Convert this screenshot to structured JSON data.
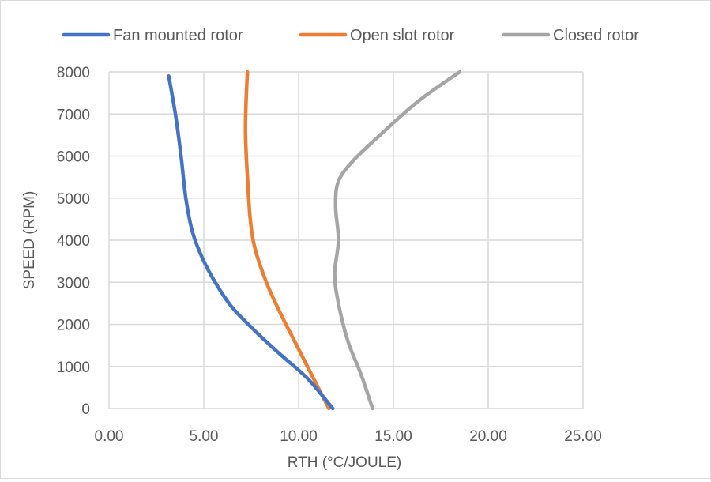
{
  "chart_data": {
    "type": "line",
    "title": "",
    "xlabel": "RTH (°C/JOULE)",
    "ylabel": "SPEED (RPM)",
    "xlim": [
      0,
      25
    ],
    "ylim": [
      0,
      8000
    ],
    "x_ticks": [
      "0.00",
      "5.00",
      "10.00",
      "15.00",
      "20.00",
      "25.00"
    ],
    "y_ticks": [
      "0",
      "1000",
      "2000",
      "3000",
      "4000",
      "5000",
      "6000",
      "7000",
      "8000"
    ],
    "grid": true,
    "legend_position": "top",
    "series": [
      {
        "name": "Fan mounted rotor",
        "color": "#4472C4",
        "points": [
          [
            11.8,
            0
          ],
          [
            10.5,
            700
          ],
          [
            9.0,
            1300
          ],
          [
            7.8,
            1800
          ],
          [
            6.5,
            2400
          ],
          [
            5.6,
            3000
          ],
          [
            4.9,
            3600
          ],
          [
            4.4,
            4200
          ],
          [
            4.05,
            5000
          ],
          [
            3.8,
            6000
          ],
          [
            3.5,
            7000
          ],
          [
            3.15,
            7900
          ]
        ]
      },
      {
        "name": "Open slot rotor",
        "color": "#ED7D31",
        "points": [
          [
            11.6,
            0
          ],
          [
            10.8,
            700
          ],
          [
            9.9,
            1500
          ],
          [
            9.0,
            2300
          ],
          [
            8.3,
            3000
          ],
          [
            7.7,
            3800
          ],
          [
            7.45,
            4500
          ],
          [
            7.3,
            5500
          ],
          [
            7.2,
            6500
          ],
          [
            7.22,
            7200
          ],
          [
            7.3,
            8000
          ]
        ]
      },
      {
        "name": "Closed rotor",
        "color": "#A5A5A5",
        "points": [
          [
            13.9,
            0
          ],
          [
            13.3,
            800
          ],
          [
            12.6,
            1600
          ],
          [
            12.1,
            2500
          ],
          [
            11.9,
            3200
          ],
          [
            12.1,
            4000
          ],
          [
            11.95,
            4800
          ],
          [
            12.1,
            5400
          ],
          [
            12.9,
            5900
          ],
          [
            14.3,
            6500
          ],
          [
            16.3,
            7300
          ],
          [
            18.5,
            8000
          ]
        ]
      }
    ]
  }
}
